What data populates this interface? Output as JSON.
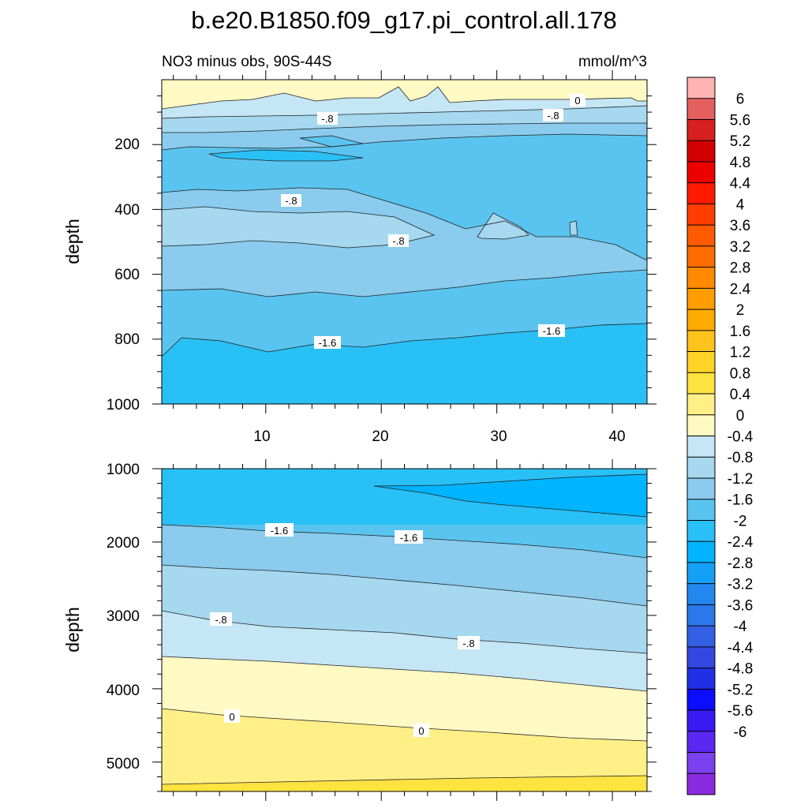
{
  "title": "b.e20.B1850.f09_g17.pi_control.all.178",
  "colors": {
    "scale": [
      "#8a2be2",
      "#7b40f0",
      "#5a28f2",
      "#3a19f3",
      "#0c0cff",
      "#1f30e6",
      "#3448e0",
      "#3460e6",
      "#2a78ea",
      "#2288f0",
      "#15a0f7",
      "#00b4ff",
      "#28c0f7",
      "#5ac4f0",
      "#8acbee",
      "#a6d8f0",
      "#c4e6f5",
      "#fff9c4",
      "#ffef87",
      "#ffe340",
      "#ffd327",
      "#ffc31c",
      "#ffab00",
      "#ff9d00",
      "#ff8a00",
      "#ff6d00",
      "#ff5a00",
      "#ff3e00",
      "#ff1a00",
      "#ee0000",
      "#d20000",
      "#d62020",
      "#e55f5f",
      "#ffb3b3"
    ]
  },
  "chart_data": [
    {
      "type": "contour",
      "subtitle_left": "NO3 minus obs, 90S-44S",
      "subtitle_right": "mmol/m^3",
      "ylabel": "depth",
      "xlabel": "",
      "xlim": [
        1,
        43
      ],
      "ylim": [
        1000,
        0
      ],
      "xticks": [
        "10",
        "20",
        "30",
        "40"
      ],
      "yticks": [
        "200",
        "400",
        "600",
        "800",
        "1000"
      ],
      "contour_labels": [
        "0",
        "-.8",
        "-.8",
        "-.8",
        "-.8",
        "-1.6",
        "-1.6"
      ]
    },
    {
      "type": "contour",
      "ylabel": "depth",
      "xlim": [
        1,
        43
      ],
      "ylim": [
        5400,
        1000
      ],
      "yticks": [
        "1000",
        "2000",
        "3000",
        "4000",
        "5000"
      ],
      "contour_labels": [
        "-1.6",
        "-1.6",
        "-.8",
        "-.8",
        "0",
        "0"
      ]
    }
  ],
  "colorbar": {
    "labels": [
      "6",
      "5.6",
      "5.2",
      "4.8",
      "4.4",
      "4",
      "3.6",
      "3.2",
      "2.8",
      "2.4",
      "2",
      "1.6",
      "1.2",
      "0.8",
      "0.4",
      "0",
      "-0.4",
      "-0.8",
      "-1.2",
      "-1.6",
      "-2",
      "-2.4",
      "-2.8",
      "-3.2",
      "-3.6",
      "-4",
      "-4.4",
      "-4.8",
      "-5.2",
      "-5.6",
      "-6"
    ]
  }
}
